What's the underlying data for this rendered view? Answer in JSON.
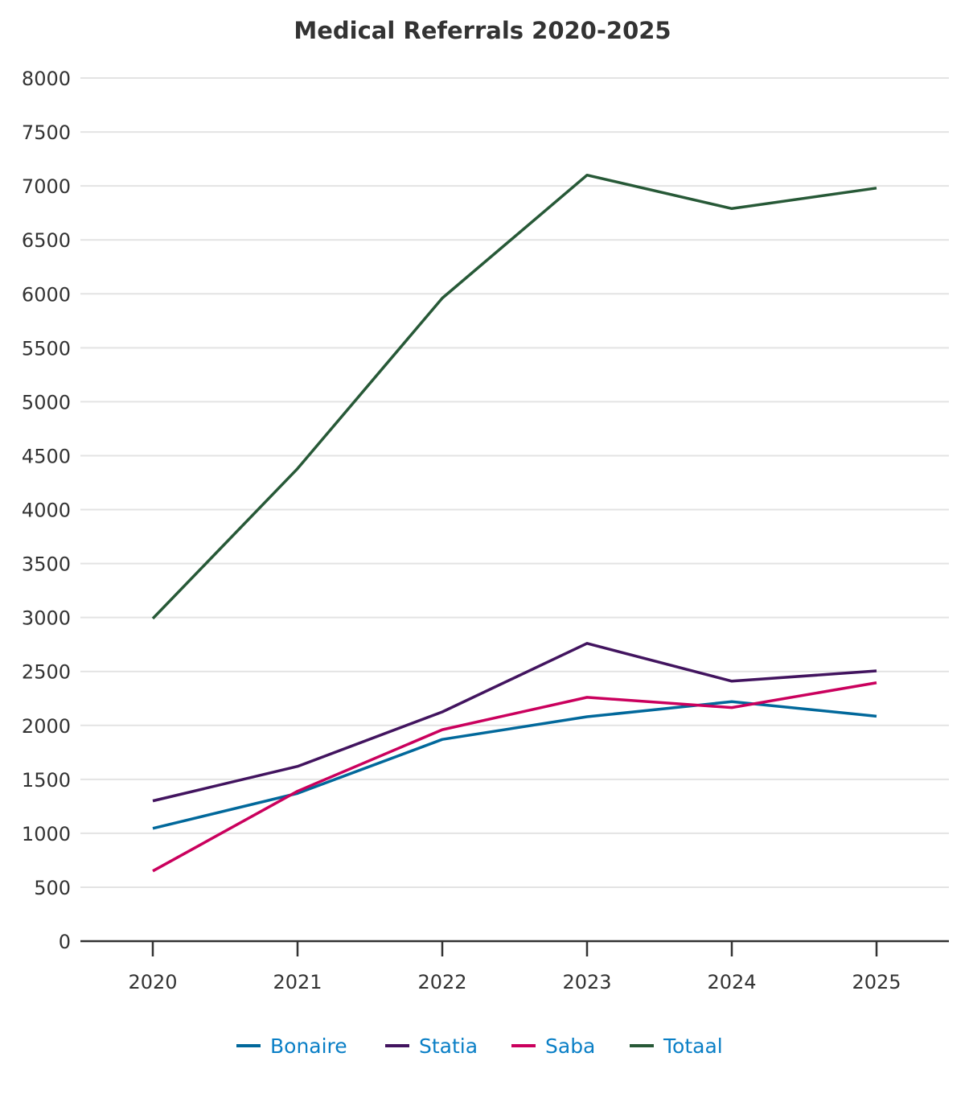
{
  "chart_data": {
    "type": "line",
    "title": "Medical Referrals 2020-2025",
    "xlabel": "",
    "ylabel": "",
    "x": [
      "2020",
      "2021",
      "2022",
      "2023",
      "2024",
      "2025"
    ],
    "ylim": [
      0,
      8000
    ],
    "yticks": [
      0,
      500,
      1000,
      1500,
      2000,
      2500,
      3000,
      3500,
      4000,
      4500,
      5000,
      5500,
      6000,
      6500,
      7000,
      7500,
      8000
    ],
    "grid": true,
    "legend_position": "bottom-center",
    "series": [
      {
        "name": "Bonaire",
        "color": "#01689b",
        "values": [
          1045,
          1370,
          1870,
          2080,
          2220,
          2085
        ]
      },
      {
        "name": "Statia",
        "color": "#42145f",
        "values": [
          1300,
          1620,
          2125,
          2760,
          2410,
          2505
        ]
      },
      {
        "name": "Saba",
        "color": "#ca005d",
        "values": [
          650,
          1390,
          1960,
          2260,
          2165,
          2395
        ]
      },
      {
        "name": "Totaal",
        "color": "#275937",
        "values": [
          2990,
          4380,
          5960,
          7100,
          6790,
          6980
        ]
      }
    ]
  }
}
